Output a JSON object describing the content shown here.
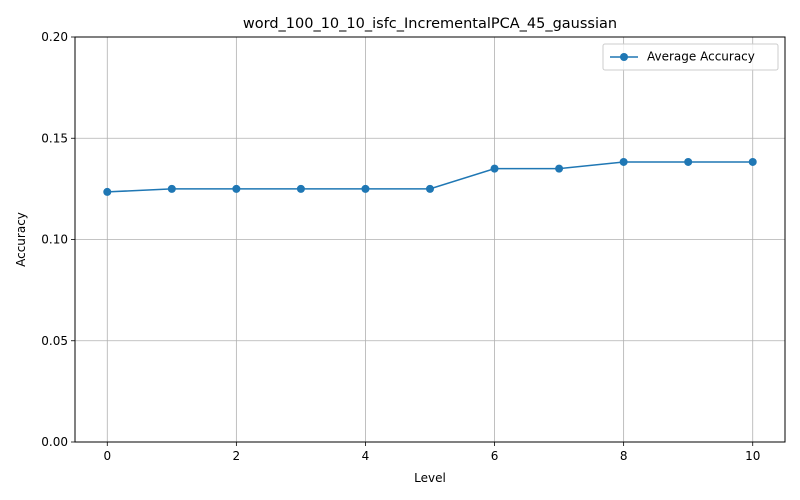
{
  "chart_data": {
    "type": "line",
    "title": "word_100_10_10_isfc_IncrementalPCA_45_gaussian",
    "xlabel": "Level",
    "ylabel": "Accuracy",
    "xlim": [
      -0.5,
      10.5
    ],
    "ylim": [
      0.0,
      0.2
    ],
    "xticks": [
      0,
      2,
      4,
      6,
      8,
      10
    ],
    "xtick_labels": [
      "0",
      "2",
      "4",
      "6",
      "8",
      "10"
    ],
    "yticks": [
      0.0,
      0.05,
      0.1,
      0.15,
      0.2
    ],
    "ytick_labels": [
      "0.00",
      "0.05",
      "0.10",
      "0.15",
      "0.20"
    ],
    "grid": true,
    "legend_position": "top-right",
    "series": [
      {
        "name": "Average Accuracy",
        "color": "#1f77b4",
        "marker": "circle",
        "x": [
          0,
          1,
          2,
          3,
          4,
          5,
          6,
          7,
          8,
          9,
          10
        ],
        "y": [
          0.1235,
          0.125,
          0.125,
          0.125,
          0.125,
          0.125,
          0.135,
          0.135,
          0.1383,
          0.1383,
          0.1383
        ]
      }
    ]
  }
}
